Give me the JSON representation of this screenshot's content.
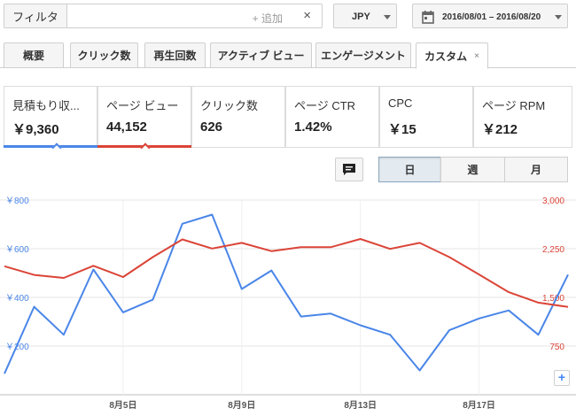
{
  "filter": {
    "label": "フィルタ",
    "add_label": "+ 追加",
    "clear_icon": "×"
  },
  "currency": {
    "value": "JPY"
  },
  "date_range": {
    "value": "2016/08/01 – 2016/08/20"
  },
  "tabs": [
    {
      "label": "概要",
      "active": false
    },
    {
      "label": "クリック数",
      "active": false
    },
    {
      "label": "再生回数",
      "active": false
    },
    {
      "label": "アクティブ ビュー",
      "active": false
    },
    {
      "label": "エンゲージメント",
      "active": false
    },
    {
      "label": "カスタム",
      "active": true,
      "close": "×"
    }
  ],
  "metrics": [
    {
      "label": "見積もり収...",
      "value": "￥9,360",
      "selected": true,
      "color": "#4a86e8"
    },
    {
      "label": "ページ ビュー",
      "value": "44,152",
      "selected": true,
      "color": "#db4437"
    },
    {
      "label": "クリック数",
      "value": "626",
      "selected": false
    },
    {
      "label": "ページ CTR",
      "value": "1.42%",
      "selected": false
    },
    {
      "label": "CPC",
      "value": "￥15",
      "selected": false
    },
    {
      "label": "ページ RPM",
      "value": "￥212",
      "selected": false
    }
  ],
  "period_buttons": [
    {
      "label": "日",
      "active": true
    },
    {
      "label": "週",
      "active": false
    },
    {
      "label": "月",
      "active": false
    }
  ],
  "zoom_label": "+",
  "icons": {
    "filter_clear": "close-icon",
    "calendar": "calendar-icon",
    "comment": "comment-icon",
    "zoom": "plus-icon"
  },
  "colors": {
    "blue": "#4a86e8",
    "red": "#db4437",
    "grid": "#e4e4e4"
  },
  "chart_data": {
    "type": "line",
    "x": [
      "8/1",
      "8/2",
      "8/3",
      "8/4",
      "8/5",
      "8/6",
      "8/7",
      "8/8",
      "8/9",
      "8/10",
      "8/11",
      "8/12",
      "8/13",
      "8/14",
      "8/15",
      "8/16",
      "8/17",
      "8/18",
      "8/19",
      "8/20"
    ],
    "x_tick_labels": [
      {
        "label": "8月5日",
        "index": 4
      },
      {
        "label": "8月9日",
        "index": 8
      },
      {
        "label": "8月13日",
        "index": 12
      },
      {
        "label": "8月17日",
        "index": 16
      }
    ],
    "y_left": {
      "ticks": [
        "￥800",
        "￥600",
        "￥400",
        "￥200"
      ],
      "range": [
        200,
        800
      ]
    },
    "y_right": {
      "ticks": [
        "3,000",
        "2,250",
        "1,500",
        "750"
      ],
      "range": [
        750,
        3000
      ]
    },
    "grid": true,
    "series": [
      {
        "axis": "left",
        "color": "#4a86e8",
        "values": [
          265,
          471,
          385,
          586,
          454,
          493,
          727,
          755,
          526,
          583,
          441,
          450,
          414,
          385,
          275,
          399,
          435,
          460,
          385,
          570
        ]
      },
      {
        "axis": "right",
        "color": "#db4437",
        "values": [
          2235,
          2135,
          2100,
          2240,
          2110,
          2340,
          2545,
          2440,
          2505,
          2410,
          2455,
          2455,
          2550,
          2435,
          2505,
          2340,
          2140,
          1935,
          1815,
          1765
        ]
      }
    ]
  }
}
